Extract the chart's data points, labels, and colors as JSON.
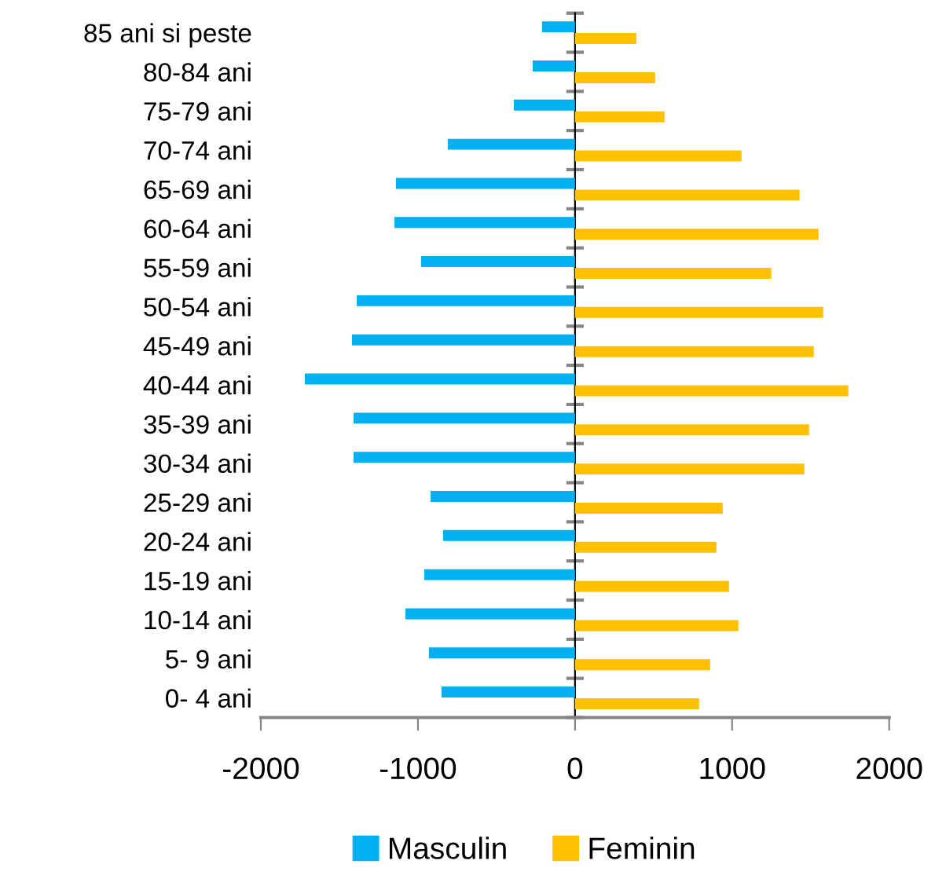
{
  "chart_data": {
    "type": "bar",
    "orientation": "horizontal",
    "categories": [
      "85 ani si peste",
      "80-84 ani",
      "75-79 ani",
      "70-74 ani",
      "65-69 ani",
      "60-64 ani",
      "55-59 ani",
      "50-54 ani",
      "45-49 ani",
      "40-44 ani",
      "35-39 ani",
      "30-34 ani",
      "25-29 ani",
      "20-24 ani",
      "15-19 ani",
      "10-14 ani",
      "5- 9 ani",
      "0- 4 ani"
    ],
    "series": [
      {
        "name": "Masculin",
        "color": "#00b0f0",
        "values": [
          -210,
          -270,
          -390,
          -810,
          -1140,
          -1150,
          -980,
          -1390,
          -1420,
          -1720,
          -1410,
          -1410,
          -920,
          -840,
          -960,
          -1080,
          -930,
          -850
        ]
      },
      {
        "name": "Feminin",
        "color": "#ffc000",
        "values": [
          390,
          510,
          570,
          1060,
          1430,
          1550,
          1250,
          1580,
          1520,
          1740,
          1490,
          1460,
          940,
          900,
          980,
          1040,
          860,
          790
        ]
      }
    ],
    "xlim": [
      -2000,
      2000
    ],
    "xticks": [
      -2000,
      -1000,
      0,
      1000,
      2000
    ],
    "legend": "bottom"
  }
}
